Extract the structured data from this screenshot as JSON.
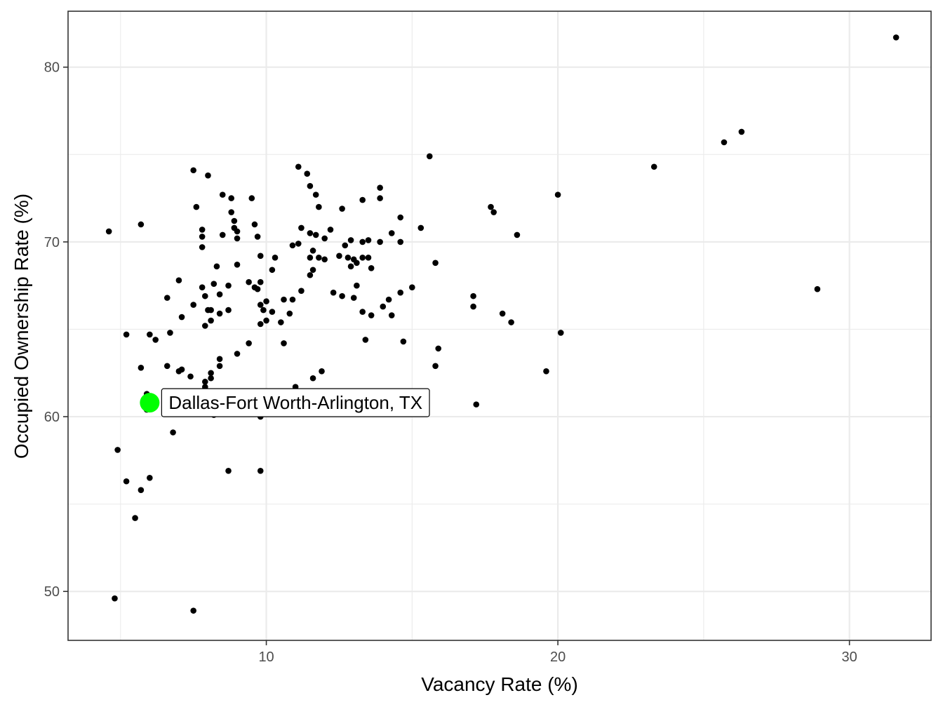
{
  "chart_data": {
    "type": "scatter",
    "title": "",
    "xlabel": "Vacancy Rate (%)",
    "ylabel": "Occupied Ownership Rate (%)",
    "xlim": [
      3.2,
      32.8
    ],
    "ylim": [
      47.2,
      83.2
    ],
    "x_major_ticks": [
      10,
      20,
      30
    ],
    "x_minor_ticks": [
      5,
      15,
      25
    ],
    "y_major_ticks": [
      50,
      60,
      70,
      80
    ],
    "y_minor_ticks": [
      55,
      65,
      75
    ],
    "grid": true,
    "colors": {
      "point": "#000000",
      "highlight": "#00ff00",
      "grid": "#ebebeb",
      "panel_border": "#333333"
    },
    "highlight": {
      "label": "Dallas-Fort Worth-Arlington, TX",
      "x": 6.0,
      "y": 60.8
    },
    "points": [
      [
        31.6,
        81.7
      ],
      [
        26.3,
        76.3
      ],
      [
        25.7,
        75.7
      ],
      [
        23.3,
        74.3
      ],
      [
        28.9,
        67.3
      ],
      [
        20.0,
        72.7
      ],
      [
        18.6,
        70.4
      ],
      [
        17.7,
        72.0
      ],
      [
        17.8,
        71.7
      ],
      [
        20.1,
        64.8
      ],
      [
        19.6,
        62.6
      ],
      [
        18.1,
        65.9
      ],
      [
        18.4,
        65.4
      ],
      [
        17.1,
        66.9
      ],
      [
        17.1,
        66.3
      ],
      [
        17.2,
        60.7
      ],
      [
        15.6,
        74.9
      ],
      [
        15.3,
        70.8
      ],
      [
        15.8,
        68.8
      ],
      [
        15.0,
        67.4
      ],
      [
        15.9,
        63.9
      ],
      [
        15.8,
        62.9
      ],
      [
        14.7,
        64.3
      ],
      [
        14.6,
        71.4
      ],
      [
        14.6,
        70.0
      ],
      [
        14.3,
        70.5
      ],
      [
        14.6,
        67.1
      ],
      [
        14.0,
        66.3
      ],
      [
        14.2,
        66.7
      ],
      [
        14.3,
        65.8
      ],
      [
        13.9,
        73.1
      ],
      [
        13.9,
        72.5
      ],
      [
        13.9,
        70.0
      ],
      [
        13.3,
        72.4
      ],
      [
        13.5,
        70.1
      ],
      [
        13.3,
        70.0
      ],
      [
        13.3,
        69.1
      ],
      [
        13.5,
        69.1
      ],
      [
        13.6,
        68.5
      ],
      [
        13.1,
        67.5
      ],
      [
        13.3,
        66.0
      ],
      [
        13.6,
        65.8
      ],
      [
        13.4,
        64.4
      ],
      [
        12.9,
        70.1
      ],
      [
        12.7,
        69.8
      ],
      [
        12.8,
        69.1
      ],
      [
        13.0,
        69.0
      ],
      [
        13.1,
        68.8
      ],
      [
        12.9,
        68.6
      ],
      [
        13.0,
        66.8
      ],
      [
        12.6,
        71.9
      ],
      [
        12.6,
        66.9
      ],
      [
        12.5,
        69.2
      ],
      [
        12.2,
        70.7
      ],
      [
        12.3,
        67.1
      ],
      [
        11.4,
        73.9
      ],
      [
        11.1,
        74.3
      ],
      [
        11.5,
        73.2
      ],
      [
        11.7,
        72.7
      ],
      [
        11.8,
        72.0
      ],
      [
        11.5,
        70.5
      ],
      [
        11.7,
        70.4
      ],
      [
        12.0,
        70.2
      ],
      [
        11.2,
        70.8
      ],
      [
        11.6,
        69.5
      ],
      [
        11.5,
        69.1
      ],
      [
        11.8,
        69.1
      ],
      [
        12.0,
        69.0
      ],
      [
        11.6,
        68.4
      ],
      [
        11.5,
        68.1
      ],
      [
        11.2,
        67.2
      ],
      [
        11.1,
        69.9
      ],
      [
        10.9,
        69.8
      ],
      [
        11.9,
        62.6
      ],
      [
        11.6,
        62.2
      ],
      [
        11.0,
        61.7
      ],
      [
        10.3,
        69.1
      ],
      [
        10.2,
        68.4
      ],
      [
        10.6,
        66.7
      ],
      [
        10.9,
        66.7
      ],
      [
        10.8,
        65.9
      ],
      [
        10.5,
        65.4
      ],
      [
        10.6,
        64.2
      ],
      [
        10.0,
        66.6
      ],
      [
        10.2,
        66.0
      ],
      [
        9.9,
        66.1
      ],
      [
        10.0,
        65.5
      ],
      [
        9.8,
        65.3
      ],
      [
        9.6,
        71.0
      ],
      [
        9.5,
        72.5
      ],
      [
        9.7,
        70.3
      ],
      [
        9.8,
        69.2
      ],
      [
        9.8,
        67.7
      ],
      [
        9.4,
        67.7
      ],
      [
        9.7,
        67.3
      ],
      [
        9.6,
        67.4
      ],
      [
        9.8,
        66.4
      ],
      [
        9.4,
        64.2
      ],
      [
        9.8,
        60.0
      ],
      [
        9.8,
        56.9
      ],
      [
        8.8,
        72.5
      ],
      [
        8.8,
        71.7
      ],
      [
        8.9,
        71.2
      ],
      [
        8.9,
        70.8
      ],
      [
        9.0,
        70.6
      ],
      [
        9.0,
        70.2
      ],
      [
        8.5,
        72.7
      ],
      [
        8.5,
        70.4
      ],
      [
        9.0,
        68.7
      ],
      [
        8.7,
        67.5
      ],
      [
        8.7,
        66.1
      ],
      [
        9.0,
        63.6
      ],
      [
        8.7,
        56.9
      ],
      [
        8.0,
        73.8
      ],
      [
        7.8,
        70.7
      ],
      [
        7.8,
        70.3
      ],
      [
        7.8,
        69.7
      ],
      [
        8.3,
        68.6
      ],
      [
        7.8,
        67.4
      ],
      [
        8.2,
        67.6
      ],
      [
        8.4,
        67.0
      ],
      [
        7.9,
        66.9
      ],
      [
        8.0,
        66.1
      ],
      [
        8.1,
        66.1
      ],
      [
        8.4,
        65.9
      ],
      [
        8.1,
        65.5
      ],
      [
        7.9,
        65.2
      ],
      [
        8.4,
        63.3
      ],
      [
        8.4,
        62.9
      ],
      [
        8.1,
        62.5
      ],
      [
        8.1,
        62.2
      ],
      [
        7.9,
        61.7
      ],
      [
        7.9,
        62.0
      ],
      [
        8.2,
        60.1
      ],
      [
        7.5,
        74.1
      ],
      [
        7.6,
        72.0
      ],
      [
        7.5,
        66.4
      ],
      [
        7.0,
        67.8
      ],
      [
        7.1,
        65.7
      ],
      [
        7.1,
        62.7
      ],
      [
        7.0,
        62.6
      ],
      [
        6.6,
        66.8
      ],
      [
        6.7,
        64.8
      ],
      [
        6.6,
        62.9
      ],
      [
        6.8,
        59.1
      ],
      [
        7.4,
        62.3
      ],
      [
        5.7,
        71.0
      ],
      [
        5.7,
        62.8
      ],
      [
        5.2,
        64.7
      ],
      [
        6.0,
        64.7
      ],
      [
        6.2,
        64.4
      ],
      [
        5.9,
        61.3
      ],
      [
        5.9,
        60.4
      ],
      [
        4.9,
        58.1
      ],
      [
        5.2,
        56.3
      ],
      [
        6.0,
        56.5
      ],
      [
        5.7,
        55.8
      ],
      [
        5.5,
        54.2
      ],
      [
        4.6,
        70.6
      ],
      [
        4.8,
        49.6
      ],
      [
        7.5,
        48.9
      ]
    ]
  }
}
